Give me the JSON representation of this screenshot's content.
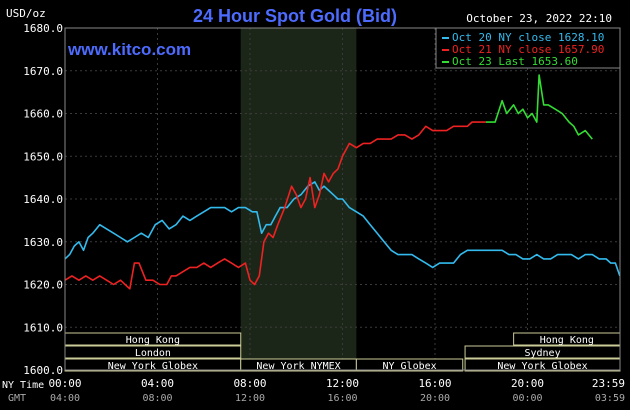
{
  "chart_data": {
    "type": "line",
    "title": "24 Hour Spot Gold (Bid)",
    "y_unit": "USD/oz",
    "watermark": "www.kitco.com",
    "timestamp": "October 23, 2022 22:10",
    "ylim": [
      1600,
      1680
    ],
    "y_ticks": [
      "1680.0",
      "1670.0",
      "1660.0",
      "1650.0",
      "1640.0",
      "1630.0",
      "1620.0",
      "1610.0",
      "1600.0"
    ],
    "x_hours_range": [
      0,
      24
    ],
    "x_axis_label_ny": "NY Time",
    "x_axis_label_gmt": "GMT",
    "x_ticks_ny": [
      "00:00",
      "04:00",
      "08:00",
      "12:00",
      "16:00",
      "20:00",
      "23:59"
    ],
    "x_ticks_gmt": [
      "04:00",
      "08:00",
      "12:00",
      "16:00",
      "20:00",
      "00:00",
      "03:59"
    ],
    "grid": true,
    "highlight_hours": [
      7.6,
      12.6
    ],
    "legend": {
      "placement": "top-right",
      "entries": [
        {
          "label": "Oct 20 NY close 1628.10",
          "color": "#33bbee"
        },
        {
          "label": "Oct 21 NY close 1657.90",
          "color": "#ee2222"
        },
        {
          "label": "Oct 23 Last 1653.60",
          "color": "#33dd33"
        }
      ]
    },
    "series": [
      {
        "name": "Oct 20",
        "color": "#33bbee",
        "x": [
          0,
          0.2,
          0.4,
          0.6,
          0.8,
          1.0,
          1.2,
          1.5,
          1.8,
          2.1,
          2.4,
          2.7,
          3.0,
          3.3,
          3.6,
          3.9,
          4.2,
          4.5,
          4.8,
          5.1,
          5.4,
          5.7,
          6.0,
          6.3,
          6.6,
          6.9,
          7.2,
          7.5,
          7.8,
          8.1,
          8.3,
          8.5,
          8.7,
          8.9,
          9.1,
          9.3,
          9.6,
          9.9,
          10.2,
          10.5,
          10.8,
          11.0,
          11.2,
          11.4,
          11.6,
          11.8,
          12.0,
          12.3,
          12.6,
          12.9,
          13.2,
          13.5,
          13.8,
          14.1,
          14.4,
          14.7,
          15.0,
          15.3,
          15.6,
          15.9,
          16.2,
          16.5,
          16.8,
          17.1,
          17.4,
          17.7,
          18.0,
          18.3,
          18.6,
          18.9,
          19.2,
          19.5,
          19.8,
          20.1,
          20.4,
          20.7,
          21.0,
          21.3,
          21.6,
          21.9,
          22.2,
          22.5,
          22.8,
          23.1,
          23.4,
          23.6,
          23.8,
          23.99
        ],
        "values": [
          1626,
          1627,
          1629,
          1630,
          1628,
          1631,
          1632,
          1634,
          1633,
          1632,
          1631,
          1630,
          1631,
          1632,
          1631,
          1634,
          1635,
          1633,
          1634,
          1636,
          1635,
          1636,
          1637,
          1638,
          1638,
          1638,
          1637,
          1638,
          1638,
          1637,
          1637,
          1632,
          1634,
          1634,
          1636,
          1638,
          1638,
          1640,
          1641,
          1643,
          1644,
          1642,
          1643,
          1642,
          1641,
          1640,
          1640,
          1638,
          1637,
          1636,
          1634,
          1632,
          1630,
          1628,
          1627,
          1627,
          1627,
          1626,
          1625,
          1624,
          1625,
          1625,
          1625,
          1627,
          1628,
          1628,
          1628,
          1628,
          1628,
          1628,
          1627,
          1627,
          1626,
          1626,
          1627,
          1626,
          1626,
          1627,
          1627,
          1627,
          1626,
          1627,
          1627,
          1626,
          1626,
          1625,
          1625,
          1622
        ]
      },
      {
        "name": "Oct 21",
        "color": "#ee2222",
        "x": [
          0,
          0.3,
          0.6,
          0.9,
          1.2,
          1.5,
          1.8,
          2.1,
          2.4,
          2.6,
          2.8,
          3.0,
          3.2,
          3.5,
          3.8,
          4.1,
          4.4,
          4.6,
          4.8,
          5.1,
          5.4,
          5.7,
          6.0,
          6.3,
          6.6,
          6.9,
          7.2,
          7.5,
          7.8,
          8.0,
          8.2,
          8.4,
          8.6,
          8.8,
          9.0,
          9.2,
          9.5,
          9.8,
          10.0,
          10.2,
          10.4,
          10.6,
          10.8,
          11.0,
          11.2,
          11.4,
          11.6,
          11.8,
          12.0,
          12.3,
          12.6,
          12.9,
          13.2,
          13.5,
          13.8,
          14.1,
          14.4,
          14.7,
          15.0,
          15.3,
          15.6,
          15.9,
          16.2,
          16.5,
          16.8,
          17.1,
          17.4,
          17.6,
          18.2
        ],
        "values": [
          1621,
          1622,
          1621,
          1622,
          1621,
          1622,
          1621,
          1620,
          1621,
          1620,
          1619,
          1625,
          1625,
          1621,
          1621,
          1620,
          1620,
          1622,
          1622,
          1623,
          1624,
          1624,
          1625,
          1624,
          1625,
          1626,
          1625,
          1624,
          1625,
          1621,
          1620,
          1622,
          1630,
          1632,
          1631,
          1634,
          1638,
          1643,
          1641,
          1638,
          1640,
          1645,
          1638,
          1641,
          1646,
          1644,
          1646,
          1647,
          1650,
          1653,
          1652,
          1653,
          1653,
          1654,
          1654,
          1654,
          1655,
          1655,
          1654,
          1655,
          1657,
          1656,
          1656,
          1656,
          1657,
          1657,
          1657,
          1658,
          1658
        ]
      },
      {
        "name": "Oct 23",
        "color": "#33dd33",
        "x": [
          18.2,
          18.6,
          18.9,
          19.1,
          19.4,
          19.6,
          19.8,
          20.0,
          20.2,
          20.4,
          20.5,
          20.7,
          20.9,
          21.2,
          21.5,
          21.8,
          22.0,
          22.2,
          22.5,
          22.8
        ],
        "values": [
          1658,
          1658,
          1663,
          1660,
          1662,
          1660,
          1661,
          1659,
          1660,
          1658,
          1669,
          1662,
          1662,
          1661,
          1660,
          1658,
          1657,
          1655,
          1656,
          1654
        ]
      }
    ],
    "sessions": [
      {
        "label": "Hong Kong",
        "start": 0,
        "end": 7.6,
        "row": 0
      },
      {
        "label": "London",
        "start": 0,
        "end": 7.6,
        "row": 1
      },
      {
        "label": "New York Globex",
        "start": 0,
        "end": 7.6,
        "row": 2
      },
      {
        "label": "New York NYMEX",
        "start": 7.6,
        "end": 12.6,
        "row": 2
      },
      {
        "label": "NY Globex",
        "start": 12.6,
        "end": 17.2,
        "row": 2
      },
      {
        "label": "Hong Kong",
        "start": 19.4,
        "end": 24,
        "row": 0
      },
      {
        "label": "Sydney",
        "start": 17.3,
        "end": 24,
        "row": 1
      },
      {
        "label": "New York Globex",
        "start": 17.3,
        "end": 24,
        "row": 2
      }
    ]
  }
}
